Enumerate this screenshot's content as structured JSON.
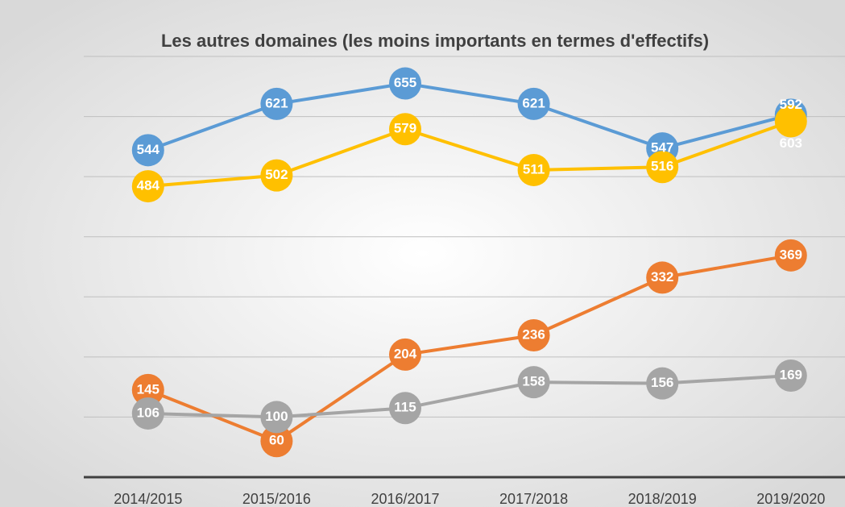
{
  "chart_data": {
    "type": "line",
    "title": "Les autres domaines (les moins importants en termes d'effectifs)",
    "categories": [
      "2014/2015",
      "2015/2016",
      "2016/2017",
      "2017/2018",
      "2018/2019",
      "2019/2020"
    ],
    "series": [
      {
        "color": "#5b9bd5",
        "values": [
          544,
          621,
          655,
          621,
          547,
          603
        ]
      },
      {
        "color": "#ed7d31",
        "values": [
          145,
          60,
          204,
          236,
          332,
          369
        ]
      },
      {
        "color": "#a5a5a5",
        "values": [
          106,
          100,
          115,
          158,
          156,
          169
        ]
      },
      {
        "color": "#ffc000",
        "values": [
          484,
          502,
          579,
          511,
          516,
          592
        ]
      }
    ],
    "ylim": [
      0,
      700
    ],
    "yticks": [
      0,
      100,
      200,
      300,
      400,
      500,
      600,
      700
    ],
    "grid": true
  }
}
